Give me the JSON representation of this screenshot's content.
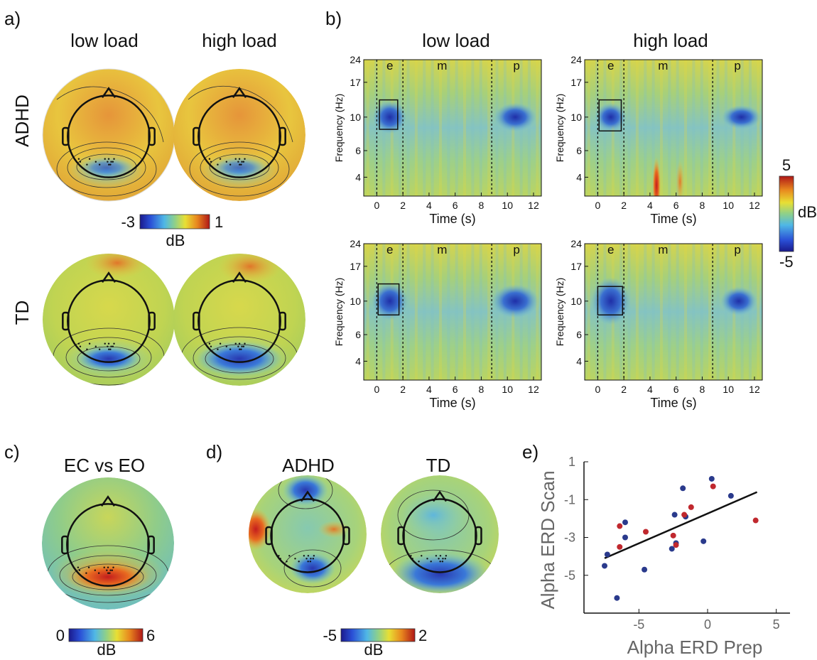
{
  "panels": {
    "a": {
      "letter": "a)",
      "col_titles": [
        "low load",
        "high load"
      ],
      "row_labels": [
        "ADHD",
        "TD"
      ],
      "colorbar": {
        "min": "-3",
        "max": "1",
        "unit": "dB"
      }
    },
    "b": {
      "letter": "b)",
      "col_titles": [
        "low load",
        "high load"
      ],
      "ylabel": "Frequency (Hz)",
      "xlabel": "Time (s)",
      "yticks": [
        "24",
        "17",
        "10",
        "6",
        "4"
      ],
      "xticks": [
        "0",
        "2",
        "4",
        "6",
        "8",
        "10",
        "12"
      ],
      "segments": [
        "e",
        "m",
        "p"
      ],
      "colorbar": {
        "max": "5",
        "min": "-5",
        "unit": "dB"
      }
    },
    "c": {
      "letter": "c)",
      "title": "EC vs EO",
      "colorbar": {
        "min": "0",
        "max": "6",
        "unit": "dB"
      }
    },
    "d": {
      "letter": "d)",
      "titles": [
        "ADHD",
        "TD"
      ],
      "colorbar": {
        "min": "-5",
        "max": "2",
        "unit": "dB"
      }
    },
    "e": {
      "letter": "e)"
    }
  },
  "chart_data": {
    "type": "scatter",
    "xlabel": "Alpha ERD Prep",
    "ylabel": "Alpha ERD Scan",
    "xlim": [
      -9,
      6
    ],
    "ylim": [
      -7,
      1
    ],
    "xticks": [
      "-5",
      "0",
      "5"
    ],
    "yticks": [
      "1",
      "-1",
      "-3",
      "-5"
    ],
    "series": [
      {
        "color": "#2a3a8c",
        "points": [
          [
            -7.5,
            -4.5
          ],
          [
            -7.3,
            -3.9
          ],
          [
            -6.6,
            -6.2
          ],
          [
            -6.0,
            -2.2
          ],
          [
            -6.0,
            -3.0
          ],
          [
            -4.6,
            -4.7
          ],
          [
            -2.6,
            -3.6
          ],
          [
            -2.4,
            -1.8
          ],
          [
            -2.3,
            -3.3
          ],
          [
            -1.8,
            -0.4
          ],
          [
            -1.6,
            -1.9
          ],
          [
            -0.3,
            -3.2
          ],
          [
            0.3,
            0.1
          ],
          [
            1.7,
            -0.8
          ]
        ]
      },
      {
        "color": "#c0282e",
        "points": [
          [
            -6.4,
            -2.4
          ],
          [
            -6.4,
            -3.5
          ],
          [
            -4.5,
            -2.7
          ],
          [
            -2.5,
            -2.9
          ],
          [
            -2.3,
            -3.4
          ],
          [
            -1.7,
            -1.8
          ],
          [
            -1.2,
            -1.4
          ],
          [
            0.4,
            -0.3
          ],
          [
            3.5,
            -2.1
          ]
        ]
      }
    ],
    "fit_line": {
      "x": [
        -7.5,
        3.6
      ],
      "y": [
        -4.1,
        -0.6
      ]
    }
  }
}
